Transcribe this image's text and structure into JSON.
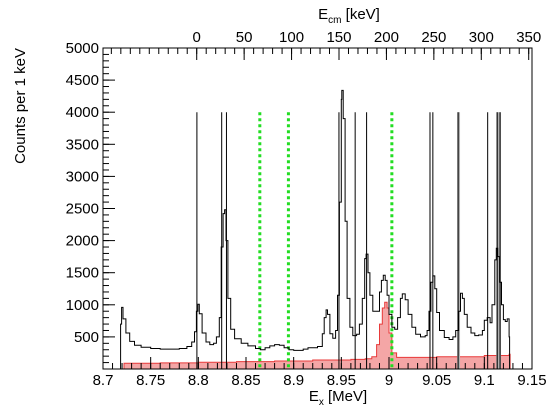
{
  "chart_data": {
    "type": "line",
    "xlabel": {
      "main": "E",
      "sub": "x",
      "rest": " [MeV]"
    },
    "x2label": {
      "main": "E",
      "sub": "cm",
      "rest": " [keV]"
    },
    "ylabel": "Counts per 1 keV",
    "xlim": [
      8.7,
      9.15
    ],
    "ylim": [
      0,
      5000
    ],
    "x_ticks": [
      8.7,
      8.75,
      8.8,
      8.85,
      8.9,
      8.95,
      9.0,
      9.05,
      9.1,
      9.15
    ],
    "x_tick_labels": [
      "8.7",
      "8.75",
      "8.8",
      "8.85",
      "8.9",
      "8.95",
      "9",
      "9.05",
      "9.1",
      "9.15"
    ],
    "y_ticks": [
      500,
      1000,
      1500,
      2000,
      2500,
      3000,
      3500,
      4000,
      4500,
      5000
    ],
    "y_tick_labels": [
      "500",
      "1000",
      "1500",
      "2000",
      "2500",
      "3000",
      "3500",
      "4000",
      "4500",
      "5000"
    ],
    "top_axis": {
      "ticks": [
        0,
        50,
        100,
        150,
        200,
        250,
        300,
        350
      ],
      "tick_labels": [
        "0",
        "50",
        "100",
        "150",
        "200",
        "250",
        "300",
        "350"
      ],
      "ex_at_ecm0": 8.7983,
      "mev_per_kev": 0.000995
    },
    "series": [
      {
        "color": "#000000",
        "style": "histogram",
        "points": [
          [
            8.718,
            0
          ],
          [
            8.7185,
            700
          ],
          [
            8.7195,
            960
          ],
          [
            8.721,
            780
          ],
          [
            8.724,
            560
          ],
          [
            8.728,
            430
          ],
          [
            8.733,
            370
          ],
          [
            8.74,
            340
          ],
          [
            8.75,
            320
          ],
          [
            8.76,
            310
          ],
          [
            8.77,
            310
          ],
          [
            8.78,
            320
          ],
          [
            8.788,
            350
          ],
          [
            8.793,
            420
          ],
          [
            8.796,
            580
          ],
          [
            8.798,
            900
          ],
          [
            8.7995,
            1010
          ],
          [
            8.801,
            860
          ],
          [
            8.804,
            560
          ],
          [
            8.808,
            420
          ],
          [
            8.812,
            380
          ],
          [
            8.816,
            400
          ],
          [
            8.819,
            500
          ],
          [
            8.822,
            800
          ],
          [
            8.824,
            1900
          ],
          [
            8.826,
            2420
          ],
          [
            8.8275,
            2480
          ],
          [
            8.829,
            2000
          ],
          [
            8.831,
            1100
          ],
          [
            8.834,
            620
          ],
          [
            8.838,
            470
          ],
          [
            8.845,
            400
          ],
          [
            8.852,
            360
          ],
          [
            8.86,
            320
          ],
          [
            8.865,
            300
          ],
          [
            8.87,
            330
          ],
          [
            8.875,
            360
          ],
          [
            8.88,
            380
          ],
          [
            8.885,
            370
          ],
          [
            8.89,
            330
          ],
          [
            8.895,
            300
          ],
          [
            8.9,
            290
          ],
          [
            8.91,
            310
          ],
          [
            8.915,
            330
          ],
          [
            8.92,
            330
          ],
          [
            8.925,
            350
          ],
          [
            8.93,
            550
          ],
          [
            8.932,
            800
          ],
          [
            8.934,
            920
          ],
          [
            8.9355,
            850
          ],
          [
            8.938,
            550
          ],
          [
            8.941,
            480
          ],
          [
            8.944,
            600
          ],
          [
            8.946,
            1150
          ],
          [
            8.948,
            2600
          ],
          [
            8.95,
            4200
          ],
          [
            8.9505,
            4340
          ],
          [
            8.952,
            3900
          ],
          [
            8.954,
            2300
          ],
          [
            8.956,
            1100
          ],
          [
            8.959,
            650
          ],
          [
            8.962,
            520
          ],
          [
            8.966,
            540
          ],
          [
            8.969,
            700
          ],
          [
            8.972,
            1100
          ],
          [
            8.9745,
            1720
          ],
          [
            8.976,
            1790
          ],
          [
            8.978,
            1500
          ],
          [
            8.98,
            1150
          ],
          [
            8.983,
            900
          ],
          [
            8.986,
            900
          ],
          [
            8.99,
            1200
          ],
          [
            8.992,
            1380
          ],
          [
            8.994,
            1460
          ],
          [
            8.996,
            1380
          ],
          [
            8.998,
            1150
          ],
          [
            9.0,
            850
          ],
          [
            9.003,
            650
          ],
          [
            9.006,
            620
          ],
          [
            9.009,
            800
          ],
          [
            9.012,
            1100
          ],
          [
            9.014,
            1170
          ],
          [
            9.017,
            1080
          ],
          [
            9.02,
            850
          ],
          [
            9.024,
            650
          ],
          [
            9.028,
            540
          ],
          [
            9.033,
            500
          ],
          [
            9.038,
            520
          ],
          [
            9.04,
            600
          ],
          [
            9.042,
            900
          ],
          [
            9.044,
            1350
          ],
          [
            9.046,
            1450
          ],
          [
            9.048,
            1250
          ],
          [
            9.05,
            880
          ],
          [
            9.053,
            600
          ],
          [
            9.058,
            490
          ],
          [
            9.063,
            460
          ],
          [
            9.067,
            500
          ],
          [
            9.07,
            600
          ],
          [
            9.073,
            900
          ],
          [
            9.075,
            1180
          ],
          [
            9.077,
            1100
          ],
          [
            9.079,
            850
          ],
          [
            9.082,
            650
          ],
          [
            9.086,
            560
          ],
          [
            9.09,
            520
          ],
          [
            9.094,
            530
          ],
          [
            9.098,
            600
          ],
          [
            9.1,
            760
          ],
          [
            9.103,
            800
          ],
          [
            9.106,
            720
          ],
          [
            9.108,
            1000
          ],
          [
            9.111,
            1700
          ],
          [
            9.1125,
            1880
          ],
          [
            9.114,
            1750
          ],
          [
            9.116,
            1350
          ],
          [
            9.118,
            1000
          ],
          [
            9.12,
            770
          ],
          [
            9.122,
            740
          ],
          [
            9.124,
            780
          ],
          [
            9.126,
            500
          ],
          [
            9.1265,
            0
          ]
        ]
      },
      {
        "color": "#e83a3a",
        "fill": "#f4a6a6",
        "style": "filled-histogram",
        "points": [
          [
            8.722,
            0
          ],
          [
            8.722,
            90
          ],
          [
            8.76,
            95
          ],
          [
            8.8,
            105
          ],
          [
            8.84,
            115
          ],
          [
            8.88,
            125
          ],
          [
            8.92,
            140
          ],
          [
            8.96,
            150
          ],
          [
            8.975,
            160
          ],
          [
            8.982,
            190
          ],
          [
            8.987,
            380
          ],
          [
            8.99,
            700
          ],
          [
            8.993,
            950
          ],
          [
            8.9955,
            1040
          ],
          [
            8.998,
            950
          ],
          [
            9.0,
            560
          ],
          [
            9.003,
            250
          ],
          [
            9.008,
            180
          ],
          [
            9.05,
            190
          ],
          [
            9.1,
            210
          ],
          [
            9.126,
            230
          ],
          [
            9.127,
            0
          ]
        ]
      }
    ],
    "vertical_lines": {
      "solid": [
        8.7985,
        8.8245,
        8.8295,
        8.9475,
        8.9645,
        8.9765,
        9.043,
        9.046,
        9.0725,
        9.1035,
        9.1135,
        9.1165
      ],
      "shaded": [
        [
          9.0715,
          9.0745
        ],
        [
          9.1125,
          9.1175
        ]
      ],
      "dotted": [
        8.8645,
        8.8945,
        9.003
      ],
      "solid_color": "#000000",
      "dotted_color": "#22dd22"
    },
    "grid": false,
    "legend": "none"
  }
}
